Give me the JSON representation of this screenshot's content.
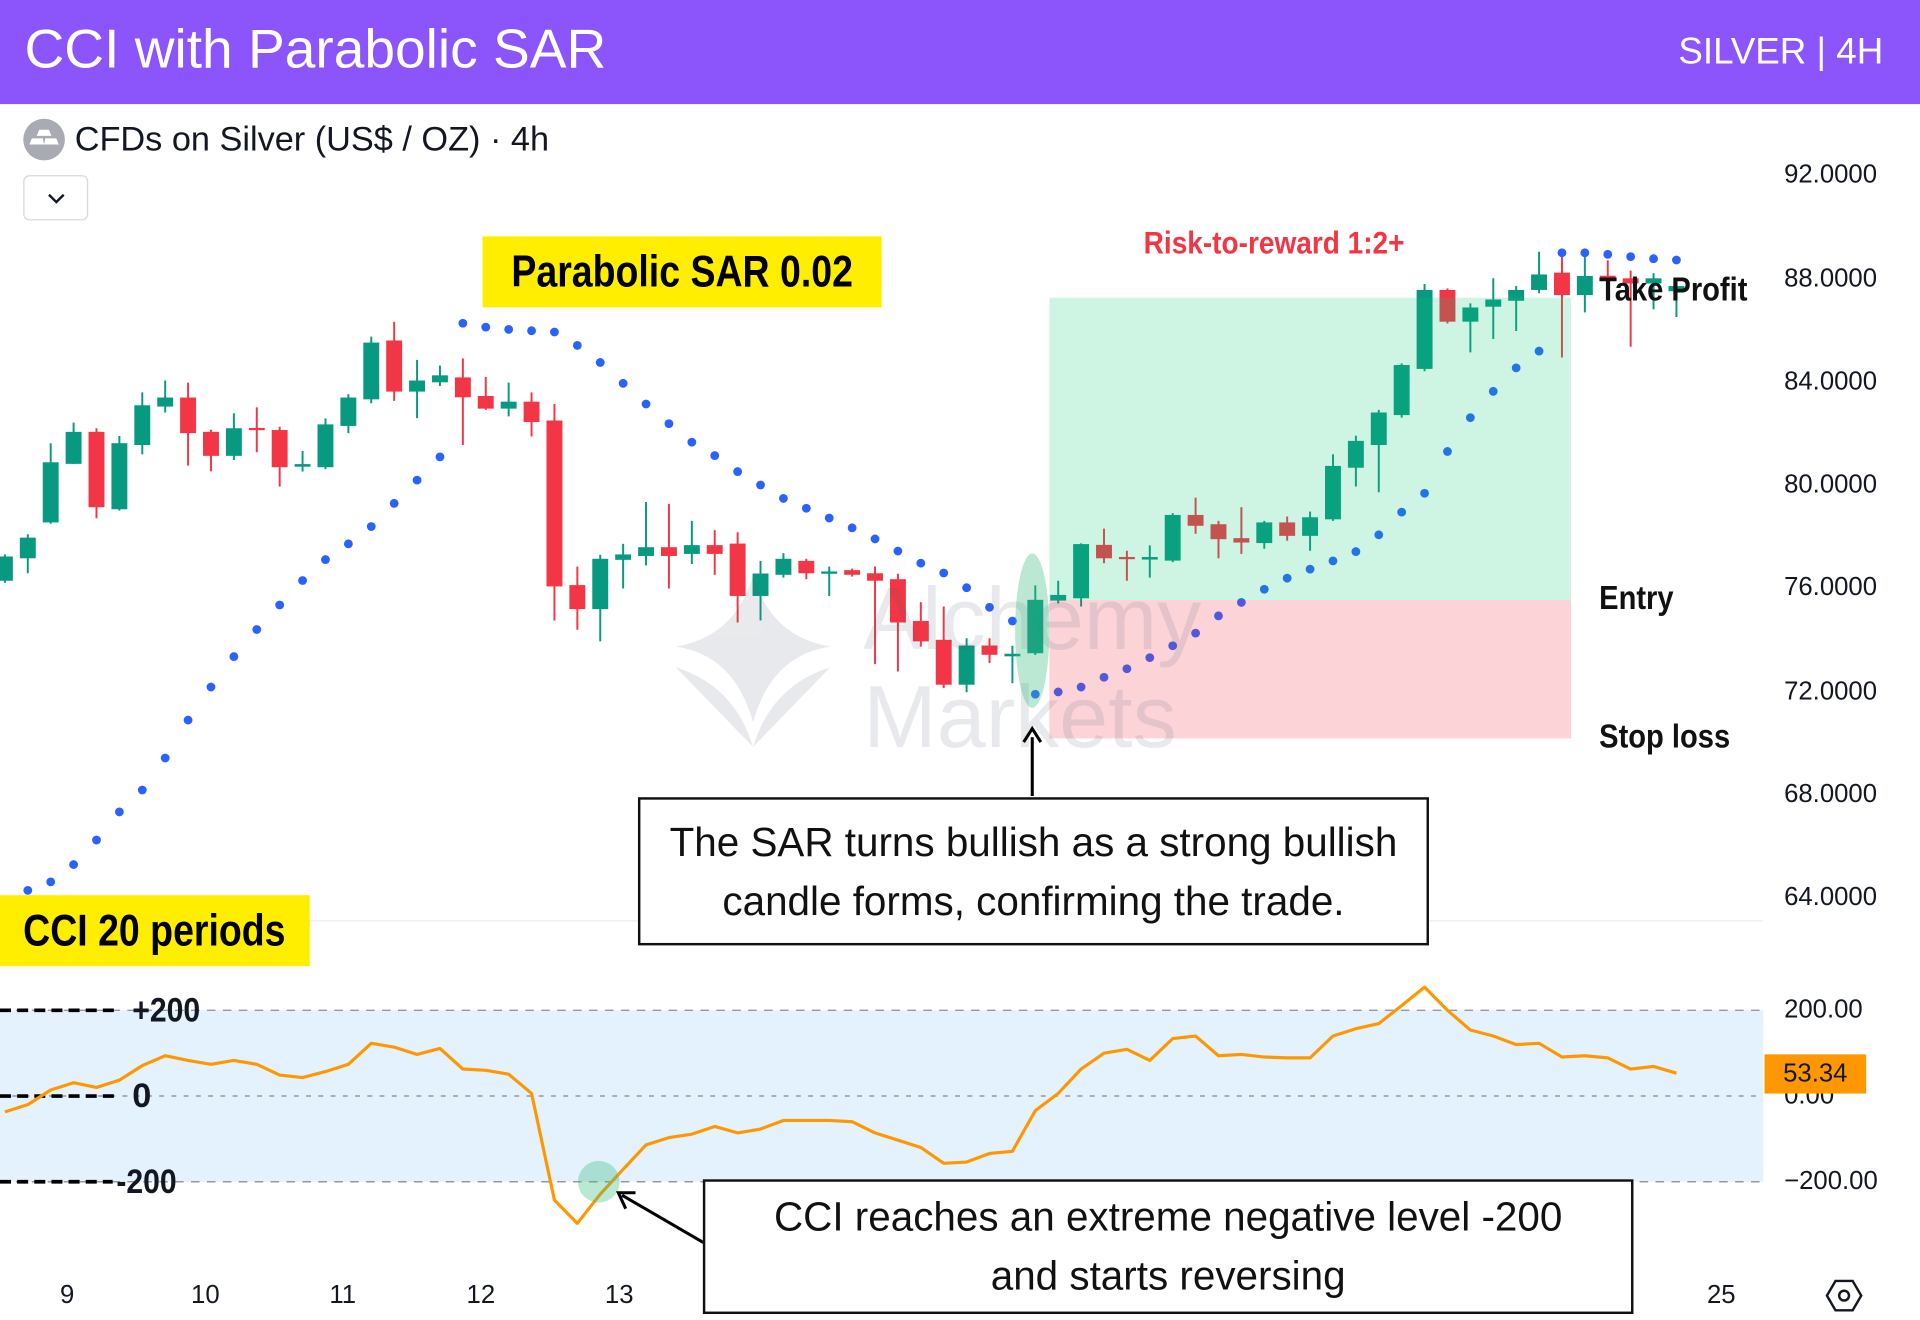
{
  "header": {
    "title": "CCI with Parabolic SAR",
    "badge": "SILVER | 4H"
  },
  "symbol": {
    "name": "CFDs on Silver (US$ / OZ) · 4h",
    "icon": "silver-bars-icon",
    "dropdown_icon": "chevron-down-icon"
  },
  "labels": {
    "psar": "Parabolic SAR 0.02",
    "cci": "CCI 20 periods",
    "risk_reward": "Risk-to-reward 1:2+",
    "take_profit": "Take Profit",
    "entry": "Entry",
    "stop_loss": "Stop loss",
    "cci_plus": "+200",
    "cci_zero": "0",
    "cci_minus": "-200"
  },
  "notes": {
    "sar": [
      "The SAR turns bullish as a strong bullish",
      "candle forms, confirming the trade."
    ],
    "cci": [
      "CCI reaches an extreme negative level -200",
      "and starts reversing"
    ]
  },
  "watermark": {
    "line1": "Alchemy",
    "line2": "Markets"
  },
  "settings_icon": "hexagon-settings-icon",
  "colors": {
    "header": "#8c55fb",
    "up": "#089981",
    "down": "#f23645",
    "sar": "#2962ff",
    "cci": "#ff9800",
    "highlight": "#ffee00",
    "profit_zone": "#cdf1df",
    "loss_zone": "#fdd5d6",
    "cci_band": "#e3f2fd",
    "risk_reward_text": "#f23645"
  },
  "chart_data": [
    {
      "type": "candlestick",
      "title": "CFDs on Silver (US$ / OZ) · 4h",
      "ylim": [
        64,
        92
      ],
      "y_ticks": [
        "92.0000",
        "88.0000",
        "84.0000",
        "80.0000",
        "76.0000",
        "72.0000",
        "68.0000",
        "64.0000"
      ],
      "x_ticks": [
        "9",
        "10",
        "11",
        "12",
        "13",
        "25"
      ],
      "ohlc": [
        [
          76.28,
          77.3,
          76.2,
          77.22
        ],
        [
          77.15,
          78.08,
          76.57,
          77.95
        ],
        [
          78.54,
          81.61,
          78.49,
          80.87
        ],
        [
          80.81,
          82.41,
          80.8,
          82.05
        ],
        [
          82.05,
          82.19,
          78.7,
          79.13
        ],
        [
          79.05,
          81.89,
          79.0,
          81.61
        ],
        [
          81.54,
          83.58,
          81.18,
          83.08
        ],
        [
          83.03,
          84.04,
          82.8,
          83.38
        ],
        [
          83.38,
          83.96,
          80.74,
          82.0
        ],
        [
          82.05,
          82.13,
          80.52,
          81.12
        ],
        [
          81.12,
          82.77,
          80.96,
          82.19
        ],
        [
          82.2,
          83.0,
          81.26,
          82.15
        ],
        [
          82.12,
          82.25,
          79.93,
          80.68
        ],
        [
          80.7,
          81.31,
          80.51,
          80.8
        ],
        [
          80.68,
          82.57,
          80.6,
          82.34
        ],
        [
          82.28,
          83.51,
          82.0,
          83.38
        ],
        [
          83.31,
          85.74,
          83.16,
          85.51
        ],
        [
          85.59,
          86.31,
          83.25,
          83.61
        ],
        [
          83.61,
          84.84,
          82.58,
          84.04
        ],
        [
          83.97,
          84.62,
          83.83,
          84.24
        ],
        [
          84.16,
          84.9,
          81.54,
          83.39
        ],
        [
          83.44,
          84.18,
          82.9,
          82.95
        ],
        [
          82.95,
          83.96,
          82.65,
          83.22
        ],
        [
          83.22,
          83.58,
          81.87,
          82.43
        ],
        [
          82.49,
          83.13,
          74.74,
          76.06
        ],
        [
          76.11,
          76.83,
          74.38,
          75.18
        ],
        [
          75.18,
          77.28,
          73.93,
          77.13
        ],
        [
          77.09,
          77.71,
          75.98,
          77.3
        ],
        [
          77.24,
          79.33,
          76.87,
          77.58
        ],
        [
          77.58,
          79.26,
          75.98,
          77.24
        ],
        [
          77.32,
          78.6,
          76.93,
          77.66
        ],
        [
          77.66,
          78.24,
          76.51,
          77.32
        ],
        [
          77.72,
          78.16,
          74.66,
          75.69
        ],
        [
          75.69,
          77.05,
          74.74,
          76.56
        ],
        [
          76.51,
          77.35,
          76.4,
          77.13
        ],
        [
          77.05,
          77.13,
          76.34,
          76.57
        ],
        [
          76.55,
          76.83,
          75.69,
          76.64
        ],
        [
          76.69,
          76.75,
          76.44,
          76.51
        ],
        [
          76.57,
          76.83,
          73.05,
          76.28
        ],
        [
          76.34,
          76.55,
          72.76,
          74.66
        ],
        [
          74.72,
          75.45,
          73.73,
          73.93
        ],
        [
          73.99,
          75.28,
          72.12,
          72.25
        ],
        [
          72.25,
          74.05,
          71.96,
          73.77
        ],
        [
          73.77,
          74.05,
          73.09,
          73.41
        ],
        [
          73.35,
          73.76,
          72.31,
          73.45
        ],
        [
          73.47,
          76.1,
          73.4,
          75.54
        ],
        [
          75.51,
          76.28,
          75.4,
          75.73
        ],
        [
          75.6,
          77.73,
          75.28,
          77.7
        ],
        [
          77.67,
          78.3,
          76.96,
          77.15
        ],
        [
          77.2,
          77.44,
          76.28,
          77.15
        ],
        [
          77.1,
          77.65,
          76.4,
          77.2
        ],
        [
          77.06,
          78.9,
          77.0,
          78.83
        ],
        [
          78.83,
          79.5,
          78.1,
          78.41
        ],
        [
          78.47,
          78.6,
          77.15,
          77.89
        ],
        [
          77.93,
          79.13,
          77.32,
          77.76
        ],
        [
          77.74,
          78.6,
          77.52,
          78.54
        ],
        [
          78.54,
          78.77,
          77.83,
          78.02
        ],
        [
          78.02,
          78.96,
          77.44,
          78.74
        ],
        [
          78.66,
          81.18,
          78.6,
          80.73
        ],
        [
          80.66,
          81.9,
          79.93,
          81.7
        ],
        [
          81.54,
          82.9,
          79.71,
          82.8
        ],
        [
          82.7,
          84.7,
          82.6,
          84.64
        ],
        [
          84.49,
          87.78,
          84.4,
          87.55
        ],
        [
          87.55,
          87.61,
          86.25,
          86.32
        ],
        [
          86.32,
          87.03,
          85.13,
          86.87
        ],
        [
          86.9,
          88.0,
          85.65,
          87.18
        ],
        [
          87.13,
          87.7,
          85.96,
          87.55
        ],
        [
          87.55,
          89.03,
          87.42,
          88.15
        ],
        [
          88.22,
          88.9,
          84.93,
          87.35
        ],
        [
          87.35,
          88.97,
          86.68,
          88.09
        ],
        [
          88.1,
          88.7,
          87.5,
          87.9
        ],
        [
          88.0,
          88.3,
          85.35,
          87.8
        ],
        [
          87.8,
          88.2,
          86.8,
          88.0
        ],
        [
          87.5,
          87.9,
          86.5,
          87.7
        ]
      ],
      "parabolic_sar": [
        null,
        64.28,
        64.61,
        65.28,
        66.23,
        67.32,
        68.17,
        69.41,
        70.88,
        72.16,
        73.34,
        74.39,
        75.34,
        76.29,
        77.1,
        77.71,
        78.38,
        79.28,
        80.18,
        81.08,
        86.26,
        86.11,
        86.02,
        85.97,
        85.92,
        85.4,
        84.74,
        83.93,
        83.13,
        82.37,
        81.65,
        81.13,
        80.51,
        79.99,
        79.47,
        79.09,
        78.71,
        78.33,
        77.9,
        77.43,
        76.96,
        76.58,
        76.01,
        75.25,
        74.72,
        71.88,
        71.97,
        72.16,
        72.54,
        72.87,
        73.3,
        73.76,
        74.25,
        74.92,
        75.44,
        75.95,
        76.38,
        76.73,
        77.05,
        77.41,
        78.06,
        78.94,
        79.67,
        81.29,
        82.6,
        83.62,
        84.53,
        85.18,
        88.99,
        88.99,
        88.93,
        88.84,
        88.76,
        88.71
      ],
      "levels": {
        "take_profit": 87.25,
        "entry": 75.53,
        "stop_loss": 70.17
      }
    },
    {
      "type": "line",
      "title": "CCI 20 periods",
      "ylim": [
        -250,
        250
      ],
      "y_ticks": [
        "200.00",
        "0.00",
        "−200.00"
      ],
      "band": [
        -200,
        200
      ],
      "last_value": "53.34",
      "values": [
        -37,
        -20,
        14,
        31,
        20,
        37,
        71,
        94,
        83,
        74,
        83,
        74,
        49,
        43,
        57,
        74,
        123,
        114,
        97,
        111,
        63,
        60,
        51,
        6,
        -243,
        -297,
        -229,
        -171,
        -114,
        -97,
        -89,
        -71,
        -86,
        -77,
        -57,
        -57,
        -57,
        -60,
        -86,
        -103,
        -120,
        -157,
        -154,
        -134,
        -129,
        -34,
        6,
        63,
        100,
        109,
        83,
        134,
        140,
        94,
        97,
        91,
        89,
        89,
        140,
        157,
        169,
        211,
        254,
        200,
        154,
        140,
        120,
        123,
        91,
        94,
        89,
        63,
        69,
        53.34
      ]
    }
  ]
}
